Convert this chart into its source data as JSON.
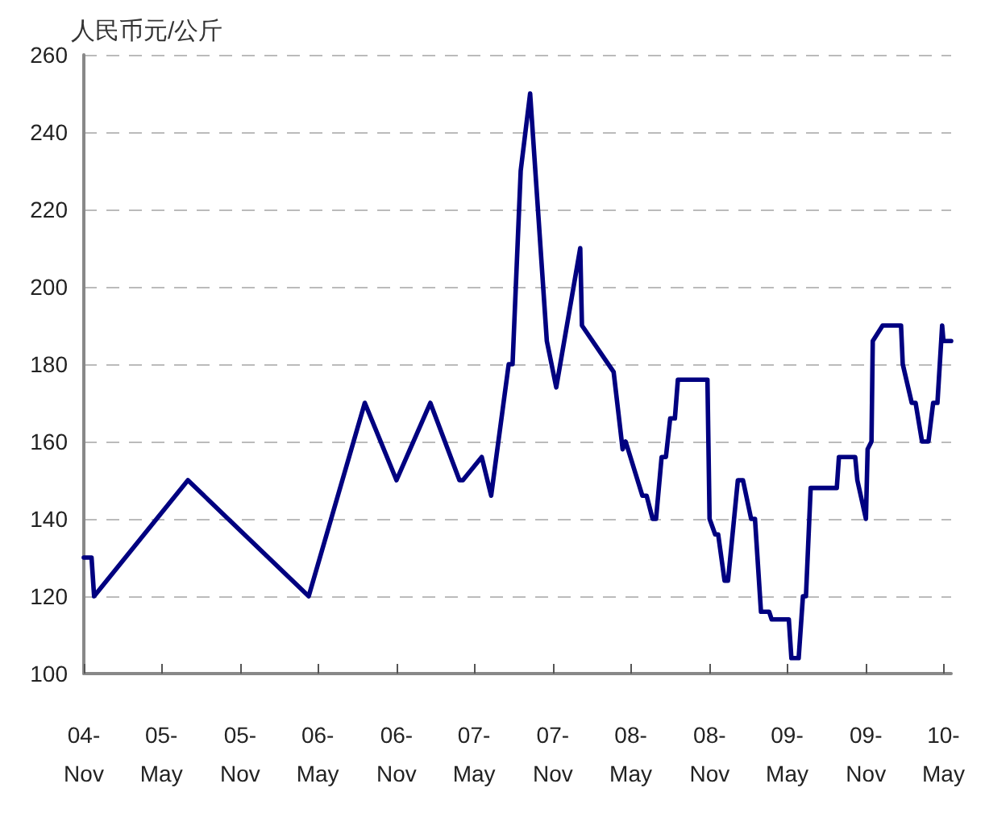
{
  "chart_data": {
    "type": "line",
    "ylabel": "人民币元/公斤",
    "x": [
      "2004-11-01",
      "2004-11-19",
      "2004-11-25",
      "2005-07-02",
      "2006-04-10",
      "2006-08-19",
      "2006-11-01",
      "2007-01-19",
      "2007-03-28",
      "2007-04-05",
      "2007-05-19",
      "2007-06-10",
      "2007-07-21",
      "2007-07-30",
      "2007-08-18",
      "2007-09-09",
      "2007-10-18",
      "2007-11-09",
      "2008-01-04",
      "2008-01-08",
      "2008-03-22",
      "2008-04-12",
      "2008-04-19",
      "2008-05-28",
      "2008-06-07",
      "2008-06-21",
      "2008-06-29",
      "2008-07-12",
      "2008-07-22",
      "2008-08-01",
      "2008-08-12",
      "2008-08-19",
      "2008-10-27",
      "2008-11-01",
      "2008-11-14",
      "2008-11-21",
      "2008-12-06",
      "2008-12-14",
      "2009-01-06",
      "2009-01-18",
      "2009-02-06",
      "2009-02-15",
      "2009-03-01",
      "2009-03-20",
      "2009-03-26",
      "2009-05-05",
      "2009-05-11",
      "2009-05-28",
      "2009-06-07",
      "2009-06-14",
      "2009-06-25",
      "2009-08-25",
      "2009-08-30",
      "2009-10-07",
      "2009-10-12",
      "2009-11-01",
      "2009-11-05",
      "2009-11-14",
      "2009-11-17",
      "2009-12-10",
      "2010-01-22",
      "2010-01-26",
      "2010-02-16",
      "2010-02-25",
      "2010-03-12",
      "2010-03-27",
      "2010-04-07",
      "2010-04-17",
      "2010-04-28",
      "2010-05-01",
      "2010-05-19"
    ],
    "series": [
      {
        "color": "#000080",
        "values": [
          130,
          130,
          120,
          150,
          120,
          170,
          150,
          170,
          150,
          150,
          156,
          146,
          180,
          180,
          230,
          250,
          186,
          174,
          210,
          190,
          178,
          158,
          160,
          146,
          146,
          140,
          140,
          156,
          156,
          166,
          166,
          176,
          176,
          140,
          136,
          136,
          124,
          124,
          150,
          150,
          140,
          140,
          116,
          116,
          114,
          114,
          104,
          104,
          120,
          120,
          148,
          148,
          156,
          156,
          150,
          140,
          158,
          160,
          186,
          190,
          190,
          180,
          170,
          170,
          160,
          160,
          170,
          170,
          190,
          186,
          186
        ]
      }
    ],
    "xlim": [
      "2004-11-01",
      "2010-05-19"
    ],
    "xticks": [
      {
        "value": "2004-11-01",
        "label": "04-\nNov"
      },
      {
        "value": "2005-05-01",
        "label": "05-\nMay"
      },
      {
        "value": "2005-11-01",
        "label": "05-\nNov"
      },
      {
        "value": "2006-05-01",
        "label": "06-\nMay"
      },
      {
        "value": "2006-11-01",
        "label": "06-\nNov"
      },
      {
        "value": "2007-05-01",
        "label": "07-\nMay"
      },
      {
        "value": "2007-11-01",
        "label": "07-\nNov"
      },
      {
        "value": "2008-05-01",
        "label": "08-\nMay"
      },
      {
        "value": "2008-11-01",
        "label": "08-\nNov"
      },
      {
        "value": "2009-05-01",
        "label": "09-\nMay"
      },
      {
        "value": "2009-11-01",
        "label": "09-\nNov"
      },
      {
        "value": "2010-05-01",
        "label": "10-\nMay"
      }
    ],
    "ylim": [
      100,
      260
    ],
    "yticks": [
      100,
      120,
      140,
      160,
      180,
      200,
      220,
      240,
      260
    ],
    "grid": "y",
    "marker": "none",
    "line_style": "solid"
  }
}
